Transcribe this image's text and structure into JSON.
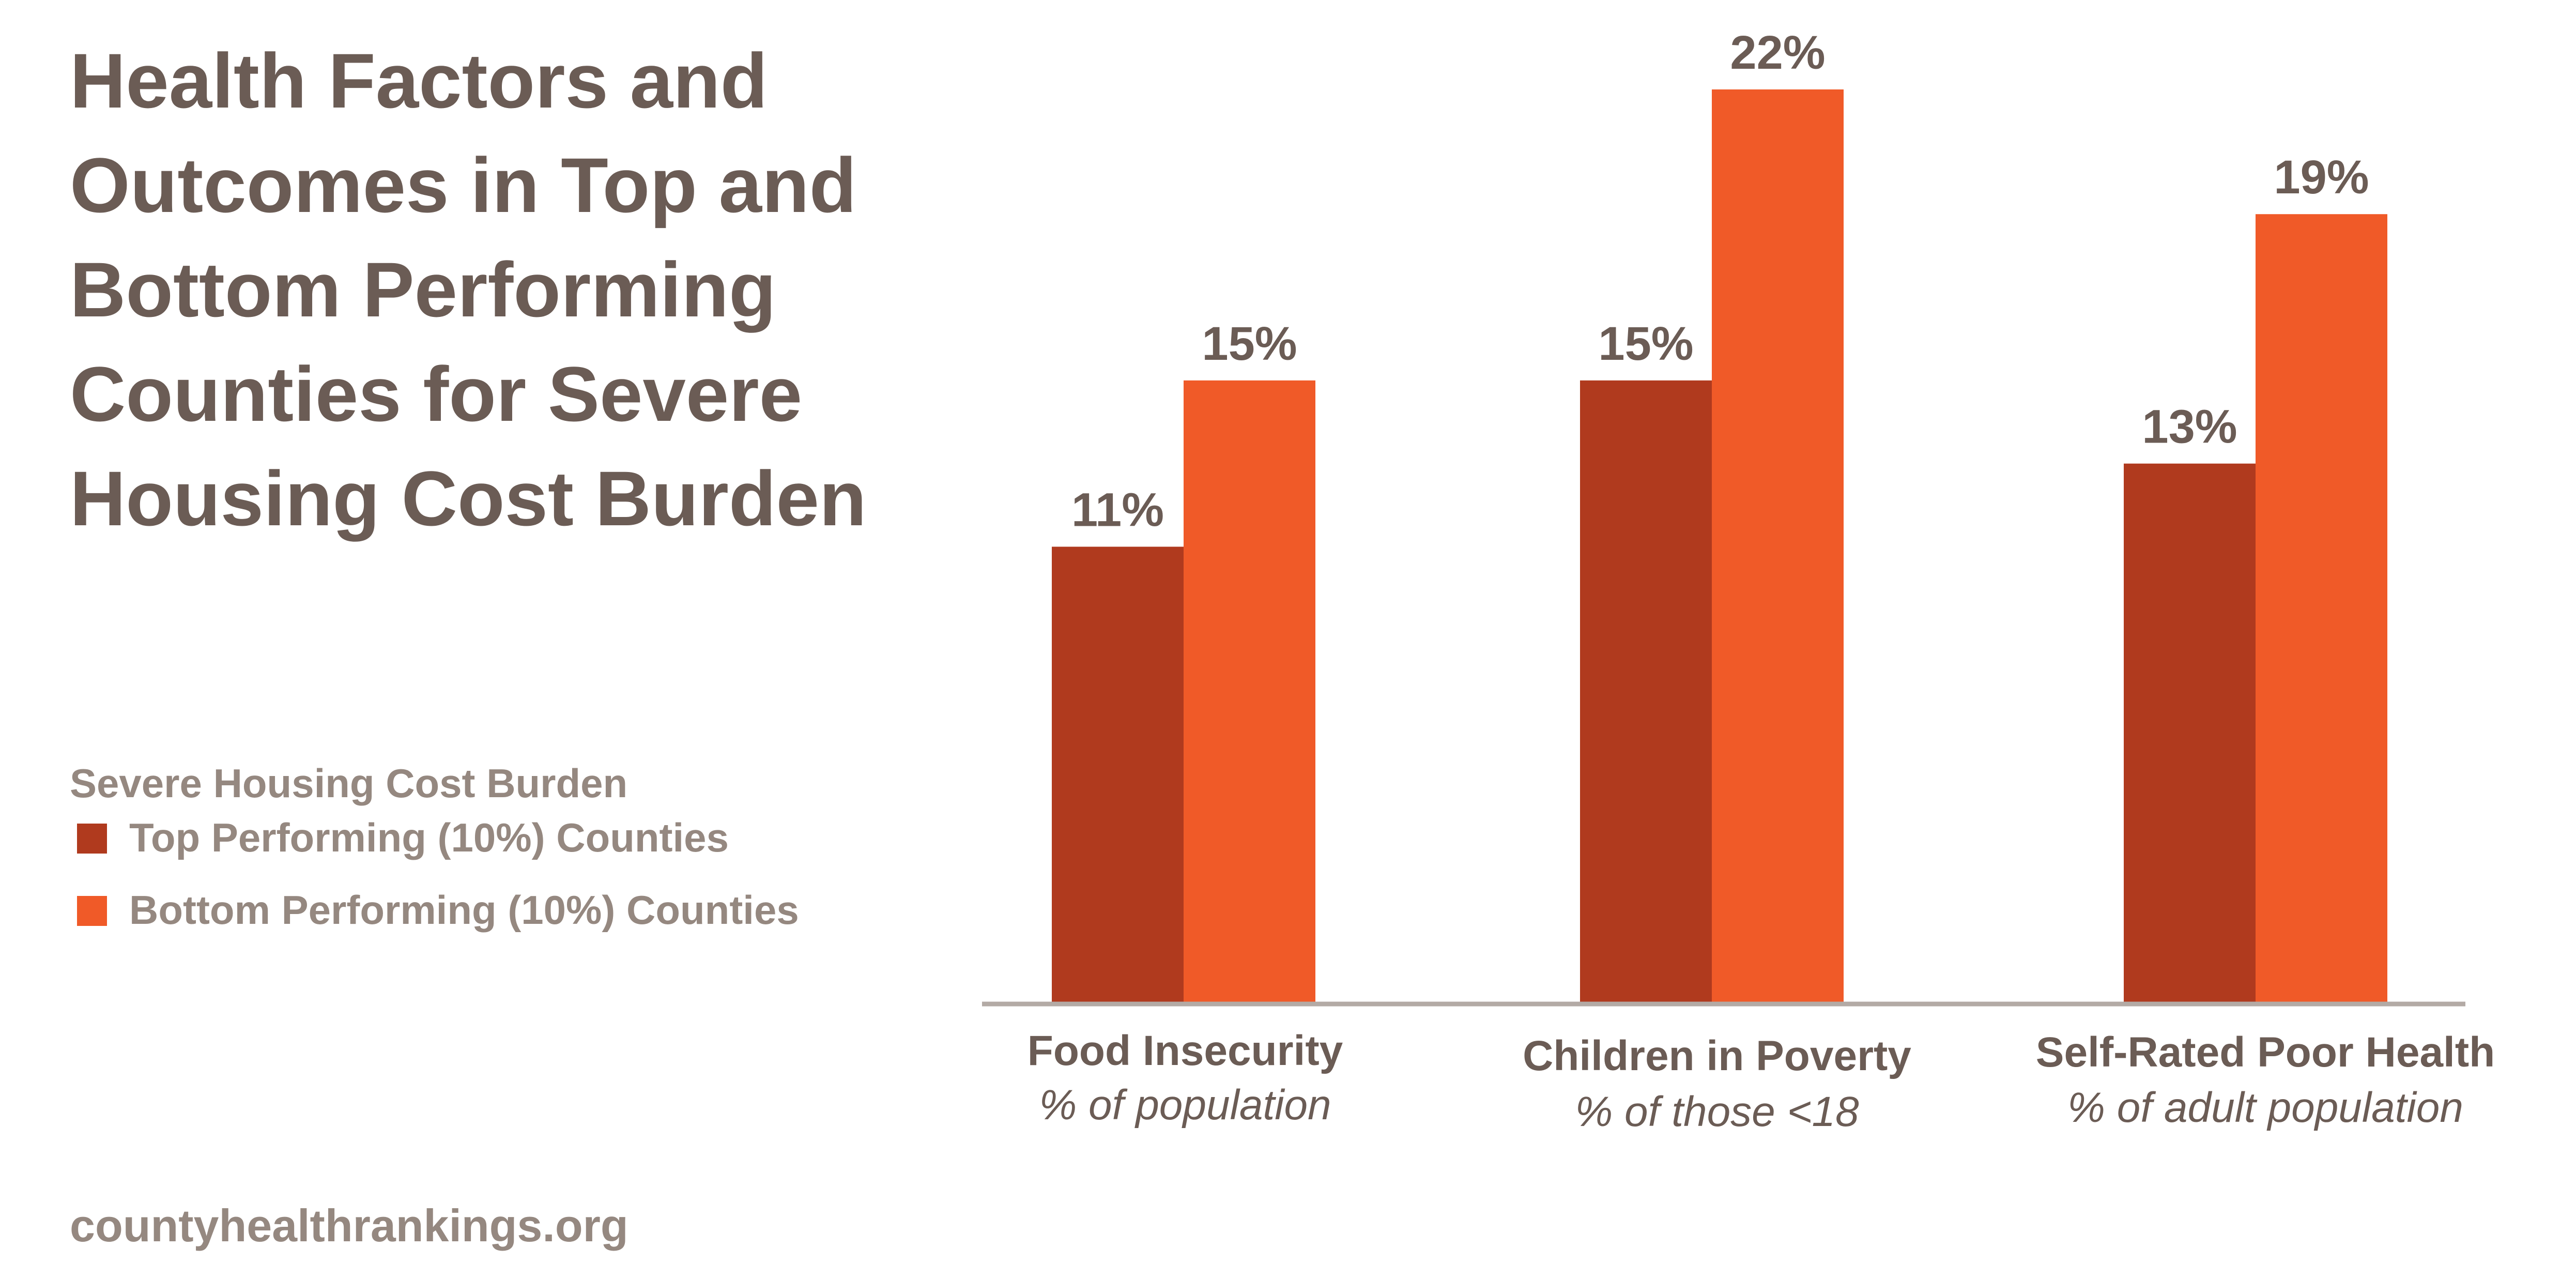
{
  "title_lines": [
    "Health Factors and",
    "Outcomes in Top and",
    "Bottom Performing",
    "Counties for Severe",
    "Housing Cost Burden"
  ],
  "legend": {
    "title": "Severe Housing Cost Burden",
    "items": [
      {
        "label": "Top Performing (10%) Counties",
        "color": "#b03a1e"
      },
      {
        "label": "Bottom Performing (10%) Counties",
        "color": "#f05a28"
      }
    ]
  },
  "source": "countyhealthrankings.org",
  "chart_data": {
    "type": "bar",
    "categories": [
      "Food Insecurity",
      "Children in Poverty",
      "Self-Rated Poor Health"
    ],
    "subcategories": [
      "% of population",
      "% of those <18",
      "% of adult population"
    ],
    "series": [
      {
        "name": "Top Performing (10%) Counties",
        "values": [
          11,
          15,
          13
        ],
        "labels": [
          "11%",
          "15%",
          "13%"
        ]
      },
      {
        "name": "Bottom Performing (10%) Counties",
        "values": [
          15,
          22,
          19
        ],
        "labels": [
          "15%",
          "22%",
          "19%"
        ]
      }
    ],
    "ylim": [
      0,
      22
    ],
    "grid": false,
    "legend_position": "left"
  }
}
